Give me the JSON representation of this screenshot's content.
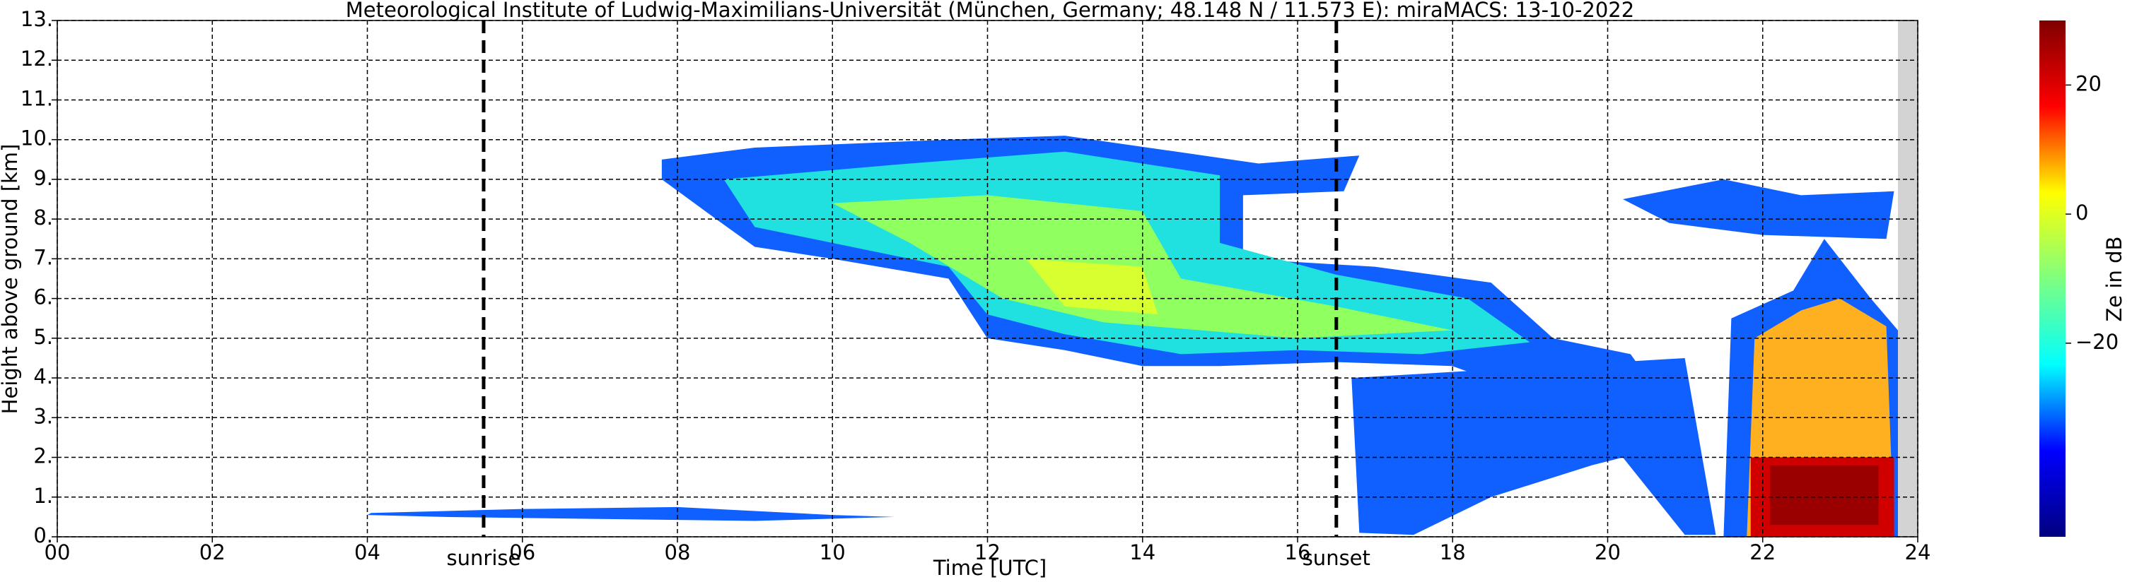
{
  "chart_data": {
    "type": "heatmap",
    "title": "Meteorological Institute of Ludwig-Maximilians-Universität (München, Germany; 48.148 N / 11.573 E):    miraMACS: 13-10-2022",
    "xlabel": "Time [UTC]",
    "ylabel": "Height above ground [km]",
    "colorbar_label": "Ze in dB",
    "colormap": "jet",
    "grid": true,
    "xlim": [
      0,
      24
    ],
    "xticks": [
      {
        "value": 0,
        "label": "00"
      },
      {
        "value": 2,
        "label": "02"
      },
      {
        "value": 4,
        "label": "04"
      },
      {
        "value": 6,
        "label": "06"
      },
      {
        "value": 8,
        "label": "08"
      },
      10,
      12,
      14,
      16,
      18,
      20,
      22,
      24
    ],
    "ylim": [
      0,
      13
    ],
    "yticks": [
      {
        "value": 0,
        "label": "0."
      },
      {
        "value": 1,
        "label": "1."
      },
      {
        "value": 2,
        "label": "2."
      },
      {
        "value": 3,
        "label": "3."
      },
      {
        "value": 4,
        "label": "4."
      },
      {
        "value": 5,
        "label": "5."
      },
      {
        "value": 6,
        "label": "6."
      },
      {
        "value": 7,
        "label": "7."
      },
      {
        "value": 8,
        "label": "8."
      },
      {
        "value": 9,
        "label": "9."
      },
      {
        "value": 10,
        "label": "10."
      },
      {
        "value": 11,
        "label": "11."
      },
      {
        "value": 12,
        "label": "12."
      },
      {
        "value": 13,
        "label": "13."
      }
    ],
    "zlim": [
      -50,
      30
    ],
    "zticks": [
      {
        "value": -20,
        "label": "−20"
      },
      0,
      20
    ],
    "markers": [
      {
        "x": 5.5,
        "label": "sunrise"
      },
      {
        "x": 16.5,
        "label": "sunset"
      }
    ]
  }
}
